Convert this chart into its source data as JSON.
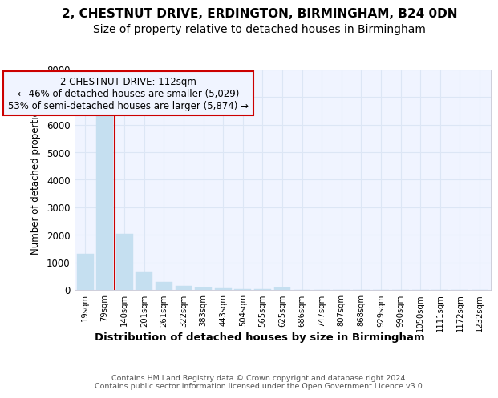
{
  "title1": "2, CHESTNUT DRIVE, ERDINGTON, BIRMINGHAM, B24 0DN",
  "title2": "Size of property relative to detached houses in Birmingham",
  "xlabel": "Distribution of detached houses by size in Birmingham",
  "ylabel": "Number of detached properties",
  "footnote": "Contains HM Land Registry data © Crown copyright and database right 2024.\nContains public sector information licensed under the Open Government Licence v3.0.",
  "annotation_title": "2 CHESTNUT DRIVE: 112sqm",
  "annotation_line1": "← 46% of detached houses are smaller (5,029)",
  "annotation_line2": "53% of semi-detached houses are larger (5,874) →",
  "bar_color": "#c5dff0",
  "marker_color": "#cc0000",
  "annotation_edge_color": "#cc0000",
  "categories": [
    "19sqm",
    "79sqm",
    "140sqm",
    "201sqm",
    "261sqm",
    "322sqm",
    "383sqm",
    "443sqm",
    "504sqm",
    "565sqm",
    "625sqm",
    "686sqm",
    "747sqm",
    "807sqm",
    "868sqm",
    "929sqm",
    "990sqm",
    "1050sqm",
    "1111sqm",
    "1172sqm",
    "1232sqm"
  ],
  "values": [
    1310,
    6600,
    2050,
    650,
    300,
    150,
    100,
    50,
    30,
    15,
    100,
    0,
    0,
    0,
    0,
    0,
    0,
    0,
    0,
    0,
    0
  ],
  "ylim": [
    0,
    8000
  ],
  "yticks": [
    0,
    1000,
    2000,
    3000,
    4000,
    5000,
    6000,
    7000,
    8000
  ],
  "bg_color": "#ffffff",
  "plot_bg_color": "#f0f4ff",
  "property_line_x": 1.5,
  "title1_fontsize": 11,
  "title2_fontsize": 10,
  "grid_color": "#dce6f5"
}
